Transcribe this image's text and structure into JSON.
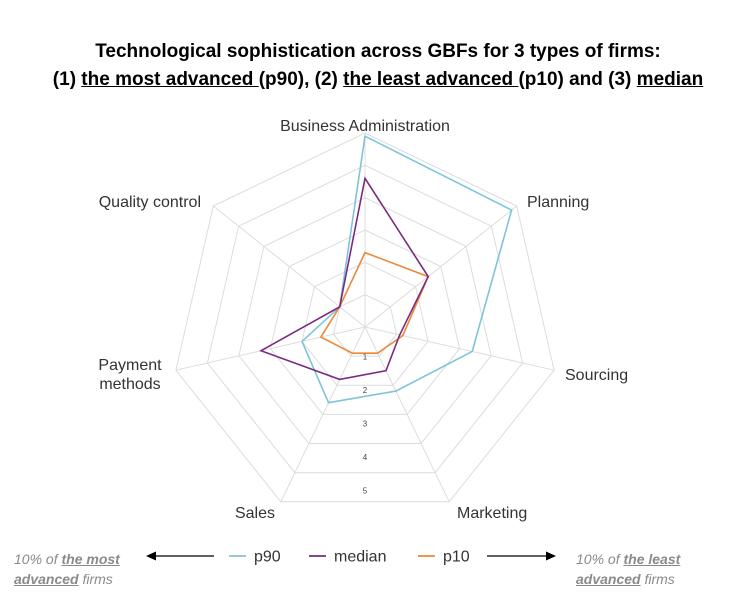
{
  "title": {
    "line1": "Technological sophistication across GBFs for 3 types of firms:",
    "line2_parts": [
      "(1) ",
      "the most advanced ",
      "(p90), (2) ",
      "the least advanced ",
      "(p10) and (3) ",
      "median"
    ]
  },
  "chart_data": {
    "type": "radar",
    "axes": [
      "Business Administration",
      "Planning",
      "Sourcing",
      "Marketing",
      "Sales",
      "Payment methods",
      "Quality control"
    ],
    "axis_label_lines": [
      [
        "Business Administration"
      ],
      [
        "Planning"
      ],
      [
        "Sourcing"
      ],
      [
        "Marketing"
      ],
      [
        "Sales"
      ],
      [
        "Payment",
        "methods"
      ],
      [
        "Quality control"
      ]
    ],
    "ticks": [
      1,
      2,
      3,
      4,
      5
    ],
    "r_range": [
      0,
      6
    ],
    "grid_levels": 6,
    "series": [
      {
        "name": "p90",
        "color": "#7fc4d8",
        "values": [
          5.9,
          5.8,
          3.4,
          2.2,
          2.6,
          2.0,
          1.0
        ]
      },
      {
        "name": "median",
        "color": "#7b2a82",
        "values": [
          4.6,
          2.5,
          1.1,
          1.5,
          1.8,
          3.3,
          1.0
        ]
      },
      {
        "name": "p10",
        "color": "#e8883a",
        "values": [
          2.3,
          2.5,
          1.2,
          0.9,
          0.9,
          1.4,
          1.0
        ]
      }
    ],
    "legend_position": "bottom"
  },
  "notes": {
    "left": {
      "pre": "10% of ",
      "bold1": "the most",
      "bold2": "advanced",
      "post": " firms"
    },
    "right": {
      "pre": "10% of ",
      "bold1": "the least",
      "bold2": "advanced",
      "post": " firms"
    }
  }
}
